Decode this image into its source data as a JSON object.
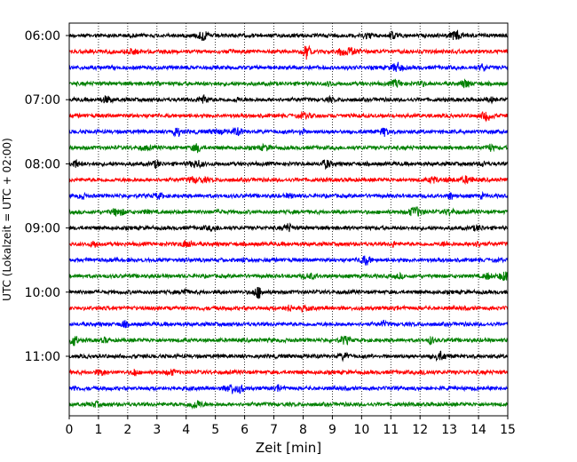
{
  "chart_data": {
    "type": "line",
    "title": "",
    "xlabel": "Zeit  [min]",
    "ylabel": "UTC (Lokalzeit = UTC + 02:00)",
    "xlim": [
      0,
      15
    ],
    "xticks": [
      0,
      1,
      2,
      3,
      4,
      5,
      6,
      7,
      8,
      9,
      10,
      11,
      12,
      13,
      14,
      15
    ],
    "xtick_labels": [
      "0",
      "1",
      "2",
      "3",
      "4",
      "5",
      "6",
      "7",
      "8",
      "9",
      "10",
      "11",
      "12",
      "13",
      "14",
      "15"
    ],
    "ytick_labels": [
      {
        "label": "06:00",
        "row": 0
      },
      {
        "label": "07:00",
        "row": 4
      },
      {
        "label": "08:00",
        "row": 8
      },
      {
        "label": "09:00",
        "row": 12
      },
      {
        "label": "10:00",
        "row": 16
      },
      {
        "label": "11:00",
        "row": 20
      }
    ],
    "grid": {
      "x": "dotted",
      "y": false
    },
    "row_minutes": 15,
    "color_cycle": [
      "#000000",
      "#ff0000",
      "#0000ff",
      "#008000"
    ],
    "series": [
      {
        "start_utc": "06:00",
        "color": "#000000"
      },
      {
        "start_utc": "06:15",
        "color": "#ff0000"
      },
      {
        "start_utc": "06:30",
        "color": "#0000ff"
      },
      {
        "start_utc": "06:45",
        "color": "#008000"
      },
      {
        "start_utc": "07:00",
        "color": "#000000"
      },
      {
        "start_utc": "07:15",
        "color": "#ff0000"
      },
      {
        "start_utc": "07:30",
        "color": "#0000ff"
      },
      {
        "start_utc": "07:45",
        "color": "#008000"
      },
      {
        "start_utc": "08:00",
        "color": "#000000"
      },
      {
        "start_utc": "08:15",
        "color": "#ff0000"
      },
      {
        "start_utc": "08:30",
        "color": "#0000ff"
      },
      {
        "start_utc": "08:45",
        "color": "#008000"
      },
      {
        "start_utc": "09:00",
        "color": "#000000"
      },
      {
        "start_utc": "09:15",
        "color": "#ff0000"
      },
      {
        "start_utc": "09:30",
        "color": "#0000ff"
      },
      {
        "start_utc": "09:45",
        "color": "#008000"
      },
      {
        "start_utc": "10:00",
        "color": "#000000"
      },
      {
        "start_utc": "10:15",
        "color": "#ff0000"
      },
      {
        "start_utc": "10:30",
        "color": "#0000ff"
      },
      {
        "start_utc": "10:45",
        "color": "#008000"
      },
      {
        "start_utc": "11:00",
        "color": "#000000"
      },
      {
        "start_utc": "11:15",
        "color": "#ff0000"
      },
      {
        "start_utc": "11:30",
        "color": "#0000ff"
      },
      {
        "start_utc": "11:45",
        "color": "#008000"
      }
    ]
  }
}
